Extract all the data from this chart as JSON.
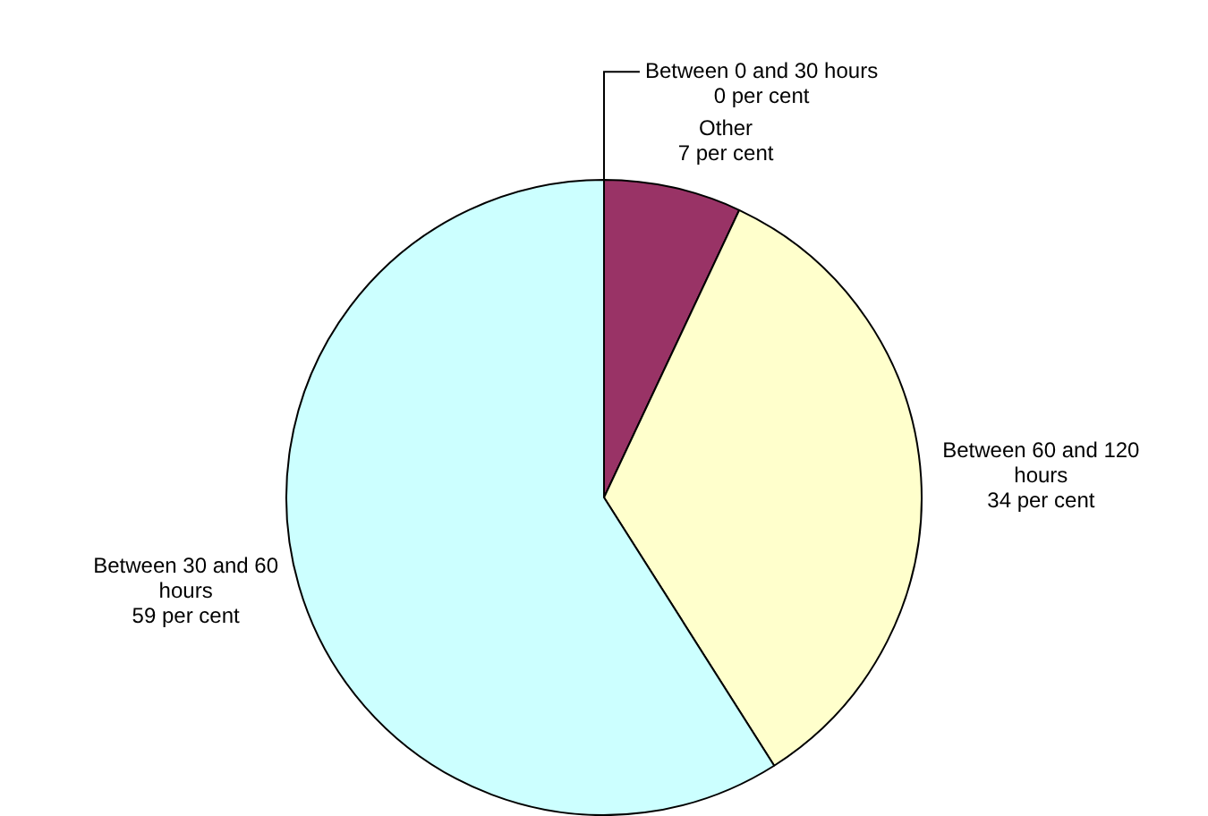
{
  "chart_data": {
    "type": "pie",
    "categories": [
      "Between 0 and 30 hours",
      "Other",
      "Between 60 and 120 hours",
      "Between 30 and 60 hours"
    ],
    "values": [
      0,
      7,
      34,
      59
    ],
    "colors": [
      "#cc99ff",
      "#993366",
      "#ffffcc",
      "#ccffff"
    ],
    "value_labels": [
      "0 per cent",
      "7 per cent",
      "34 per cent",
      "59 per cent"
    ],
    "legend": false
  }
}
